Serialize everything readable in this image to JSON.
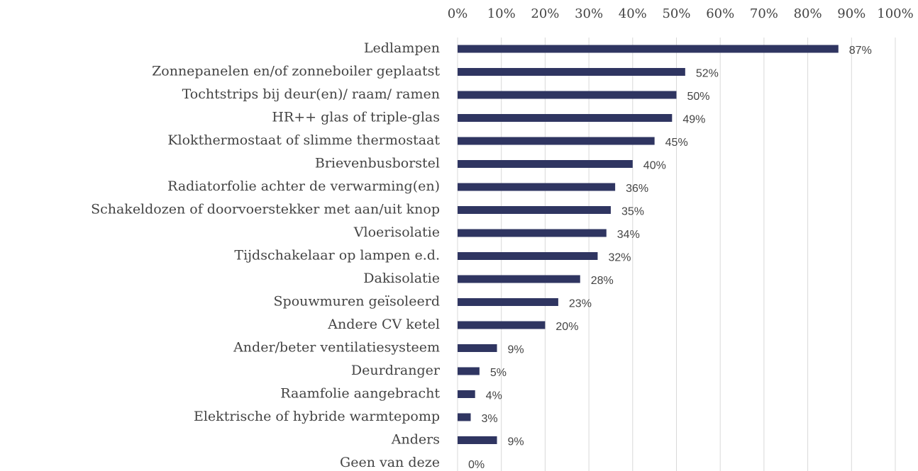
{
  "chart_data": {
    "type": "bar",
    "orientation": "horizontal",
    "categories": [
      "Ledlampen",
      "Zonnepanelen en/of zonneboiler geplaatst",
      "Tochtstrips bij deur(en)/ raam/ ramen",
      "HR++ glas of triple-glas",
      "Klokthermostaat of slimme thermostaat",
      "Brievenbusborstel",
      "Radiatorfolie achter de verwarming(en)",
      "Schakeldozen of doorvoerstekker met aan/uit knop",
      "Vloerisolatie",
      "Tijdschakelaar op lampen e.d.",
      "Dakisolatie",
      "Spouwmuren geïsoleerd",
      "Andere CV ketel",
      "Ander/beter ventilatiesysteem",
      "Deurdranger ",
      "Raamfolie aangebracht ",
      "Elektrische of hybride warmtepomp",
      "Anders",
      "Geen van deze"
    ],
    "values": [
      87,
      52,
      50,
      49,
      45,
      40,
      36,
      35,
      34,
      32,
      28,
      23,
      20,
      9,
      5,
      4,
      3,
      9,
      0
    ],
    "value_labels": [
      "87%",
      "52%",
      "50%",
      "49%",
      "45%",
      "40%",
      "36%",
      "35%",
      "34%",
      "32%",
      "28%",
      "23%",
      "20%",
      "9%",
      "5%",
      "4%",
      "3%",
      "9%",
      "0%"
    ],
    "color": "#2f3561",
    "xlim": [
      0,
      100
    ],
    "xticks": [
      {
        "value": 0,
        "label": "0%"
      },
      {
        "value": 10,
        "label": "10%"
      },
      {
        "value": 20,
        "label": "20%"
      },
      {
        "value": 30,
        "label": "30%"
      },
      {
        "value": 40,
        "label": "40%"
      },
      {
        "value": 50,
        "label": "50%"
      },
      {
        "value": 60,
        "label": "60%"
      },
      {
        "value": 70,
        "label": "70%"
      },
      {
        "value": 80,
        "label": "80%"
      },
      {
        "value": 90,
        "label": "90%"
      },
      {
        "value": 100,
        "label": "100%"
      }
    ],
    "grid": true
  }
}
